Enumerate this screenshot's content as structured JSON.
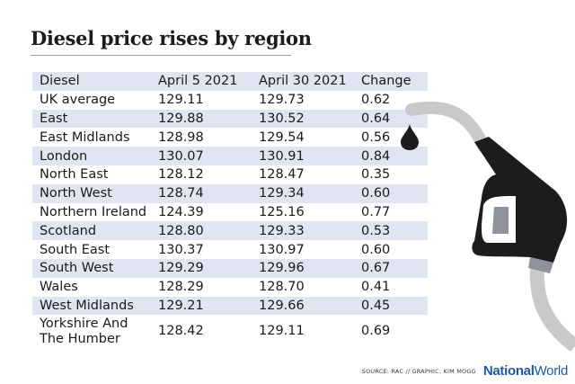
{
  "chart_data": {
    "type": "table",
    "title": "Diesel price rises by region",
    "columns": [
      "Diesel",
      "April 5 2021",
      "April 30 2021",
      "Change"
    ],
    "rows": [
      [
        "UK average",
        "129.11",
        "129.73",
        "0.62"
      ],
      [
        "East",
        "129.88",
        "130.52",
        "0.64"
      ],
      [
        "East Midlands",
        "128.98",
        "129.54",
        "0.56"
      ],
      [
        "London",
        "130.07",
        "130.91",
        "0.84"
      ],
      [
        "North East",
        "128.12",
        "128.47",
        "0.35"
      ],
      [
        "North West",
        "128.74",
        "129.34",
        "0.60"
      ],
      [
        "Northern Ireland",
        "124.39",
        "125.16",
        "0.77"
      ],
      [
        "Scotland",
        "128.80",
        "129.33",
        "0.53"
      ],
      [
        "South East",
        "130.37",
        "130.97",
        "0.60"
      ],
      [
        "South West",
        "129.29",
        "129.96",
        "0.67"
      ],
      [
        "Wales",
        "128.29",
        "128.70",
        "0.41"
      ],
      [
        "West Midlands",
        "129.21",
        "129.66",
        "0.45"
      ],
      [
        "Yorkshire And The Humber",
        "128.42",
        "129.11",
        "0.69"
      ]
    ]
  },
  "footer": {
    "source": "SOURCE: RAC // GRAPHIC: KIM MOGG",
    "logo_part1": "National",
    "logo_part2": "World"
  },
  "colors": {
    "band": "#e1e5f1",
    "pump_dark": "#1c1c1c",
    "hose": "#c9c9c9",
    "logo": "#1e5aa8"
  },
  "icons": [
    "fuel-nozzle-icon",
    "fuel-drop-icon"
  ]
}
